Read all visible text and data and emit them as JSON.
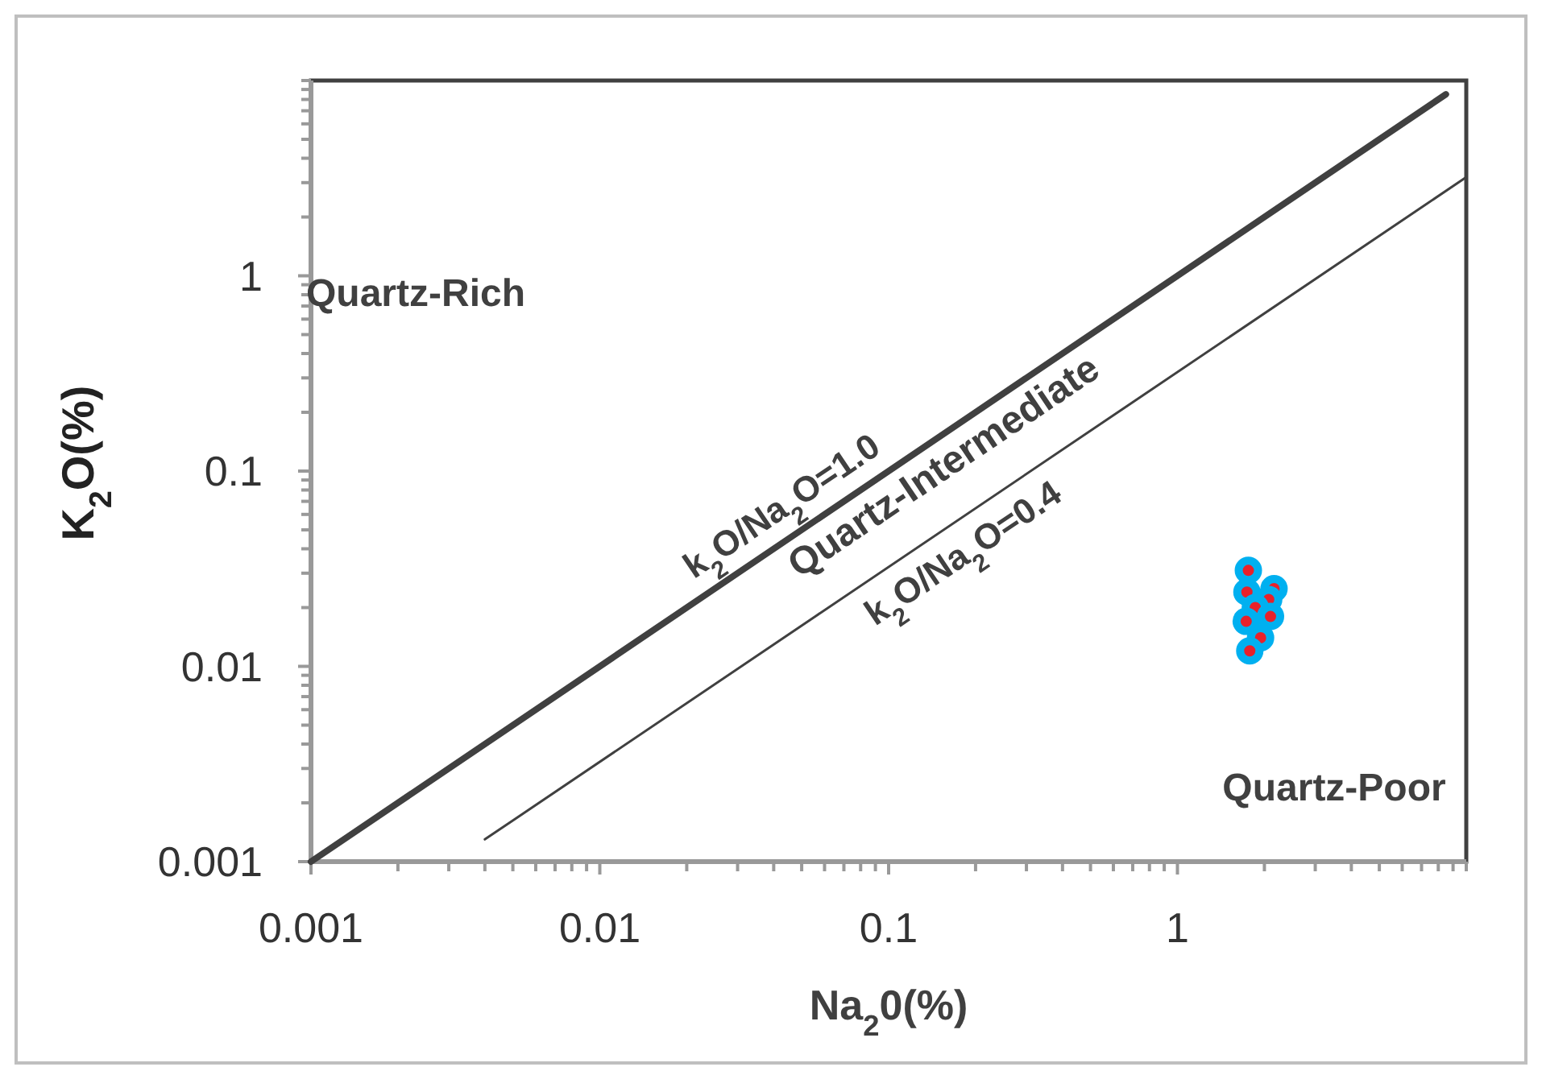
{
  "chart_data": {
    "type": "scatter",
    "xlabel": "Na$_{2}$0(%)",
    "ylabel": "K$_{2}$O(%)",
    "log": "xy",
    "grid": false,
    "legend": false,
    "marker": "circle",
    "xlim": [
      0.001,
      10
    ],
    "ylim": [
      0.001,
      10
    ],
    "xticks": [
      0.001,
      {
        "value": 0.002,
        "label": null
      },
      {
        "value": 0.003,
        "label": null
      },
      {
        "value": 0.004,
        "label": null
      },
      {
        "value": 0.005,
        "label": null
      },
      {
        "value": 0.006,
        "label": null
      },
      {
        "value": 0.007,
        "label": null
      },
      {
        "value": 0.008,
        "label": null
      },
      {
        "value": 0.009,
        "label": null
      },
      0.01,
      {
        "value": 0.02,
        "label": null
      },
      {
        "value": 0.03,
        "label": null
      },
      {
        "value": 0.04,
        "label": null
      },
      {
        "value": 0.05,
        "label": null
      },
      {
        "value": 0.06,
        "label": null
      },
      {
        "value": 0.07,
        "label": null
      },
      {
        "value": 0.08,
        "label": null
      },
      {
        "value": 0.09,
        "label": null
      },
      0.1,
      {
        "value": 0.2,
        "label": null
      },
      {
        "value": 0.3,
        "label": null
      },
      {
        "value": 0.4,
        "label": null
      },
      {
        "value": 0.5,
        "label": null
      },
      {
        "value": 0.6,
        "label": null
      },
      {
        "value": 0.7,
        "label": null
      },
      {
        "value": 0.8,
        "label": null
      },
      {
        "value": 0.9,
        "label": null
      },
      1,
      {
        "value": 2,
        "label": null
      },
      {
        "value": 3,
        "label": null
      },
      {
        "value": 4,
        "label": null
      },
      {
        "value": 5,
        "label": null
      },
      {
        "value": 6,
        "label": null
      },
      {
        "value": 7,
        "label": null
      },
      {
        "value": 8,
        "label": null
      },
      {
        "value": 9,
        "label": null
      },
      {
        "value": 10,
        "label": null
      }
    ],
    "yticks": [
      0.001,
      {
        "value": 0.002,
        "label": null
      },
      {
        "value": 0.003,
        "label": null
      },
      {
        "value": 0.004,
        "label": null
      },
      {
        "value": 0.005,
        "label": null
      },
      {
        "value": 0.006,
        "label": null
      },
      {
        "value": 0.007,
        "label": null
      },
      {
        "value": 0.008,
        "label": null
      },
      {
        "value": 0.009,
        "label": null
      },
      0.01,
      {
        "value": 0.02,
        "label": null
      },
      {
        "value": 0.03,
        "label": null
      },
      {
        "value": 0.04,
        "label": null
      },
      {
        "value": 0.05,
        "label": null
      },
      {
        "value": 0.06,
        "label": null
      },
      {
        "value": 0.07,
        "label": null
      },
      {
        "value": 0.08,
        "label": null
      },
      {
        "value": 0.09,
        "label": null
      },
      0.1,
      {
        "value": 0.2,
        "label": null
      },
      {
        "value": 0.3,
        "label": null
      },
      {
        "value": 0.4,
        "label": null
      },
      {
        "value": 0.5,
        "label": null
      },
      {
        "value": 0.6,
        "label": null
      },
      {
        "value": 0.7,
        "label": null
      },
      {
        "value": 0.8,
        "label": null
      },
      {
        "value": 0.9,
        "label": null
      },
      1,
      {
        "value": 2,
        "label": null
      },
      {
        "value": 3,
        "label": null
      },
      {
        "value": 4,
        "label": null
      },
      {
        "value": 5,
        "label": null
      },
      {
        "value": 6,
        "label": null
      },
      {
        "value": 7,
        "label": null
      },
      {
        "value": 8,
        "label": null
      },
      {
        "value": 9,
        "label": null
      },
      {
        "value": 10,
        "label": null
      }
    ],
    "series": [
      {
        "type": "line",
        "name": "k$_{2}$O/Na$_{2}$O=1.0",
        "color": "#404040",
        "marker": "none",
        "x": [
          0.001,
          8.5
        ],
        "values": [
          0.001,
          8.5
        ]
      },
      {
        "type": "line",
        "name": "k$_{2}$O/Na$_{2}$O=0.4",
        "color": "#404040",
        "marker": "none",
        "x": [
          0.004,
          10
        ],
        "values": [
          0.0013,
          3.2
        ]
      },
      {
        "color": "#00b0f0",
        "x": [
          1.76,
          1.74,
          2.16,
          2.07,
          1.86,
          2.1,
          1.73,
          1.94,
          1.78
        ],
        "values": [
          0.031,
          0.024,
          0.025,
          0.022,
          0.02,
          0.018,
          0.017,
          0.014,
          0.012
        ]
      }
    ],
    "annotations": [
      "Quartz-Rich",
      "Quartz-Intermediate",
      "Quartz-Poor"
    ]
  }
}
